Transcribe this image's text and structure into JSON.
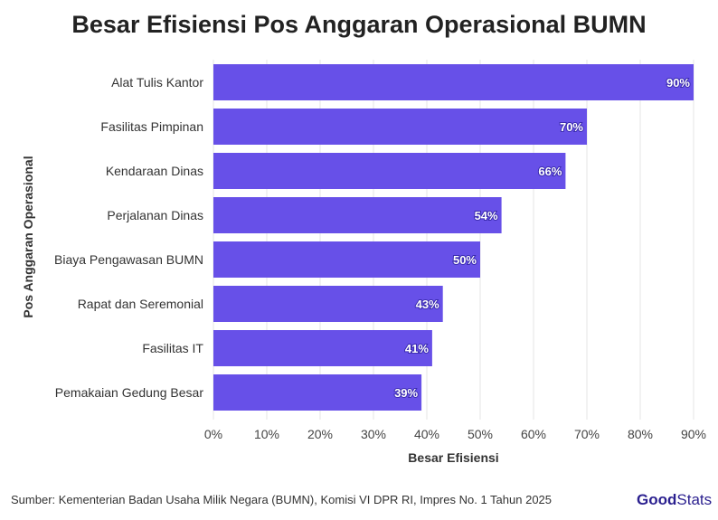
{
  "chart_data": {
    "type": "bar",
    "orientation": "horizontal",
    "title": "Besar Efisiensi Pos Anggaran Operasional BUMN",
    "xlabel": "Besar Efisiensi",
    "ylabel": "Pos Anggaran Operasional",
    "categories": [
      "Alat Tulis Kantor",
      "Fasilitas Pimpinan",
      "Kendaraan Dinas",
      "Perjalanan Dinas",
      "Biaya Pengawasan BUMN",
      "Rapat dan Seremonial",
      "Fasilitas IT",
      "Pemakaian Gedung Besar"
    ],
    "values": [
      90,
      70,
      66,
      54,
      50,
      43,
      41,
      39
    ],
    "data_labels": [
      "90%",
      "70%",
      "66%",
      "54%",
      "50%",
      "43%",
      "41%",
      "39%"
    ],
    "xlim": [
      0,
      90
    ],
    "xticks": [
      0,
      10,
      20,
      30,
      40,
      50,
      60,
      70,
      80,
      90
    ],
    "xtick_labels": [
      "0%",
      "10%",
      "20%",
      "30%",
      "40%",
      "50%",
      "60%",
      "70%",
      "80%",
      "90%"
    ],
    "grid": true,
    "bar_color": "#6750e8"
  },
  "footer": {
    "source": "Sumber: Kementerian Badan Usaha Milik Negara (BUMN), Komisi VI DPR RI, Impres No. 1 Tahun 2025",
    "logo_bold": "Good",
    "logo_light": "Stats"
  }
}
